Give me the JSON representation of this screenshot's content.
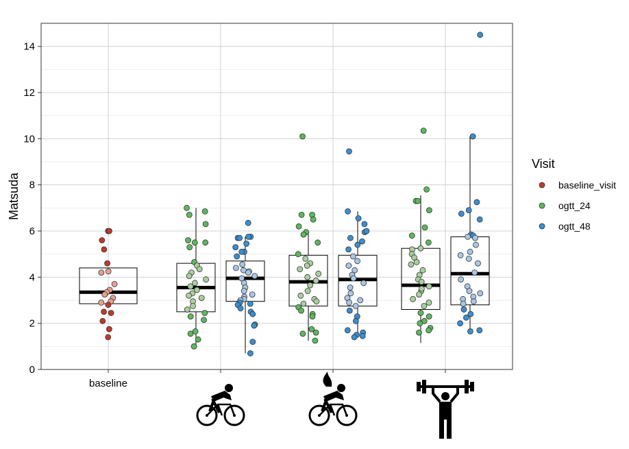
{
  "chart_data": {
    "type": "boxplot",
    "ylabel": "Matsuda",
    "ylim": [
      0,
      15
    ],
    "y_ticks": [
      "0",
      "2",
      "4",
      "6",
      "8",
      "10",
      "12",
      "14"
    ],
    "x_tick_labels": [
      "baseline",
      "",
      "",
      ""
    ],
    "x_tick_icons": [
      "",
      "cyclist-icon",
      "cyclist-fire-icon",
      "weightlifter-icon"
    ],
    "grid": true,
    "legend": {
      "title": "Visit",
      "position": "right",
      "entries": [
        {
          "name": "baseline_visit",
          "color": "#c0392b"
        },
        {
          "name": "ogtt_24",
          "color": "#5cb85c"
        },
        {
          "name": "ogtt_48",
          "color": "#3a8fd0"
        }
      ]
    },
    "boxes": [
      {
        "group": 0,
        "visit": "baseline_visit",
        "q1": 2.85,
        "median": 3.35,
        "q3": 4.4,
        "whisker_low": 2.85,
        "whisker_high": 4.4
      },
      {
        "group": 1,
        "visit": "ogtt_24",
        "q1": 2.5,
        "median": 3.55,
        "q3": 4.6,
        "whisker_low": 1.0,
        "whisker_high": 7.0
      },
      {
        "group": 1,
        "visit": "ogtt_48",
        "q1": 2.95,
        "median": 3.95,
        "q3": 4.7,
        "whisker_low": 0.7,
        "whisker_high": 5.75
      },
      {
        "group": 2,
        "visit": "ogtt_24",
        "q1": 2.75,
        "median": 3.8,
        "q3": 4.95,
        "whisker_low": 1.25,
        "whisker_high": 6.0
      },
      {
        "group": 2,
        "visit": "ogtt_48",
        "q1": 2.75,
        "median": 3.9,
        "q3": 4.95,
        "whisker_low": 1.45,
        "whisker_high": 6.85
      },
      {
        "group": 3,
        "visit": "ogtt_24",
        "q1": 2.6,
        "median": 3.65,
        "q3": 5.25,
        "whisker_low": 1.15,
        "whisker_high": 7.55
      },
      {
        "group": 3,
        "visit": "ogtt_48",
        "q1": 2.8,
        "median": 4.15,
        "q3": 5.75,
        "whisker_low": 1.65,
        "whisker_high": 10.1
      }
    ],
    "points": [
      {
        "box": 0,
        "values": [
          6.0,
          6.0,
          5.6,
          5.2,
          4.6,
          4.25,
          4.2,
          3.7,
          3.45,
          3.35,
          3.25,
          3.1,
          2.95,
          2.9,
          2.8,
          2.5,
          2.45,
          2.1,
          1.75,
          1.4
        ]
      },
      {
        "box": 1,
        "values": [
          6.7,
          7.0,
          6.85,
          6.3,
          5.6,
          5.5,
          5.5,
          5.3,
          4.65,
          4.5,
          4.35,
          4.2,
          4.05,
          3.9,
          3.75,
          3.6,
          3.45,
          3.3,
          3.2,
          3.1,
          2.95,
          2.75,
          2.6,
          2.45,
          2.3,
          2.15,
          1.65,
          1.55,
          1.3,
          1.0
        ]
      },
      {
        "box": 2,
        "values": [
          5.75,
          5.75,
          5.7,
          5.7,
          5.1,
          4.9,
          4.4,
          4.3,
          4.25,
          4.2,
          4.05,
          3.95,
          3.75,
          3.55,
          3.4,
          3.25,
          3.15,
          3.05,
          3.0,
          2.9,
          2.85,
          2.8,
          2.65,
          2.5,
          2.4,
          1.95,
          1.9,
          1.2,
          0.7,
          6.35,
          5.45,
          5.3,
          5.1,
          4.55
        ]
      },
      {
        "box": 3,
        "values": [
          10.1,
          5.95,
          6.7,
          6.5,
          5.85,
          5.5,
          5.0,
          4.8,
          4.6,
          4.5,
          4.35,
          4.15,
          4.0,
          3.85,
          3.65,
          3.4,
          3.2,
          3.05,
          2.95,
          2.85,
          2.7,
          2.55,
          2.4,
          2.3,
          1.75,
          1.6,
          1.55,
          1.25,
          6.7,
          6.2
        ]
      },
      {
        "box": 4,
        "values": [
          9.45,
          6.85,
          6.55,
          6.3,
          5.95,
          5.7,
          5.4,
          5.2,
          4.9,
          4.7,
          4.5,
          4.3,
          4.1,
          3.95,
          3.75,
          3.55,
          3.3,
          3.1,
          3.0,
          2.9,
          2.75,
          2.55,
          2.3,
          2.1,
          1.7,
          1.6,
          1.5,
          1.45,
          1.4,
          6.0,
          5.55
        ]
      },
      {
        "box": 5,
        "values": [
          10.35,
          7.3,
          7.3,
          5.8,
          5.5,
          5.2,
          5.0,
          4.85,
          4.65,
          4.55,
          4.3,
          4.1,
          3.9,
          3.8,
          3.6,
          3.4,
          3.25,
          3.05,
          2.9,
          2.75,
          2.45,
          2.3,
          2.1,
          2.0,
          1.8,
          1.7,
          1.6,
          5.25,
          6.15,
          7.8,
          6.9,
          3.5
        ]
      },
      {
        "box": 6,
        "values": [
          14.5,
          10.1,
          7.25,
          6.9,
          6.75,
          6.5,
          5.85,
          5.8,
          5.75,
          5.7,
          5.4,
          5.1,
          4.8,
          4.6,
          4.2,
          3.9,
          3.6,
          3.4,
          3.3,
          3.15,
          3.05,
          2.95,
          2.85,
          2.6,
          2.4,
          2.25,
          2.0,
          1.7,
          1.65,
          4.95
        ]
      }
    ]
  }
}
